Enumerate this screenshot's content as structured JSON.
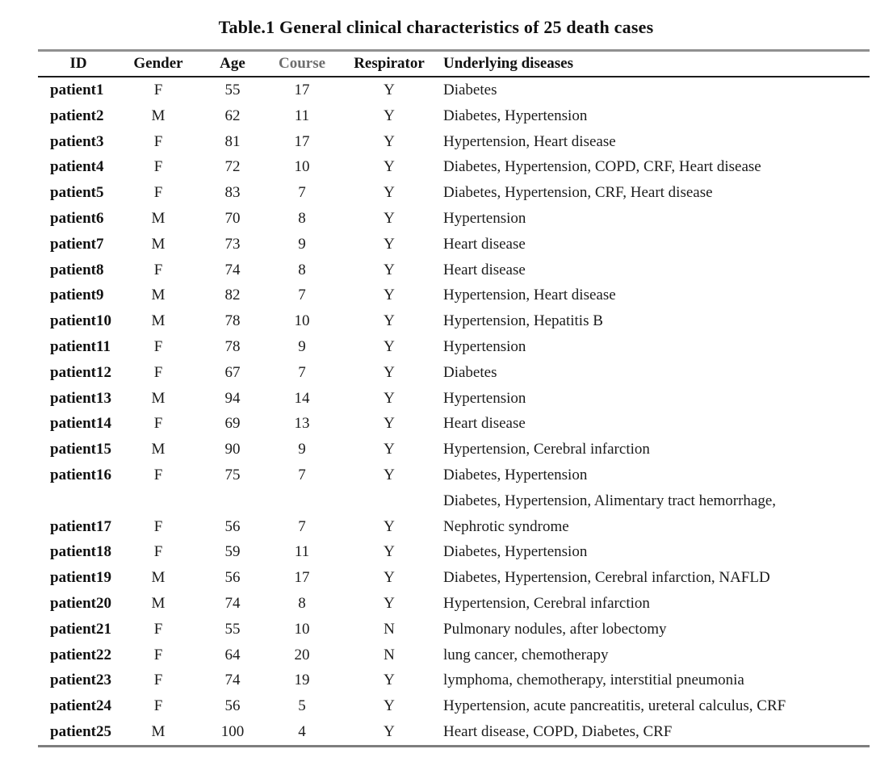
{
  "title": "Table.1 General clinical characteristics of 25 death cases",
  "colors": {
    "background": "#ffffff",
    "text": "#1b1b1b",
    "top_rule": "#909090",
    "bottom_rule": "#7e7e7e",
    "header_rule": "#1c1c1c",
    "course_header_text": "#6e6e6e"
  },
  "table": {
    "columns": [
      "ID",
      "Gender",
      "Age",
      "Course",
      "Respirator",
      "Underlying diseases"
    ],
    "rows": [
      {
        "id": "patient1",
        "gender": "F",
        "age": "55",
        "course": "17",
        "respirator": "Y",
        "diseases": "Diabetes"
      },
      {
        "id": "patient2",
        "gender": "M",
        "age": "62",
        "course": "11",
        "respirator": "Y",
        "diseases": "Diabetes, Hypertension"
      },
      {
        "id": "patient3",
        "gender": "F",
        "age": "81",
        "course": "17",
        "respirator": "Y",
        "diseases": "Hypertension, Heart disease"
      },
      {
        "id": "patient4",
        "gender": "F",
        "age": "72",
        "course": "10",
        "respirator": "Y",
        "diseases": "Diabetes, Hypertension, COPD, CRF, Heart disease"
      },
      {
        "id": "patient5",
        "gender": "F",
        "age": "83",
        "course": "7",
        "respirator": "Y",
        "diseases": "Diabetes, Hypertension, CRF, Heart disease"
      },
      {
        "id": "patient6",
        "gender": "M",
        "age": "70",
        "course": "8",
        "respirator": "Y",
        "diseases": "Hypertension"
      },
      {
        "id": "patient7",
        "gender": "M",
        "age": "73",
        "course": "9",
        "respirator": "Y",
        "diseases": "Heart disease"
      },
      {
        "id": "patient8",
        "gender": "F",
        "age": "74",
        "course": "8",
        "respirator": "Y",
        "diseases": "Heart disease"
      },
      {
        "id": "patient9",
        "gender": "M",
        "age": "82",
        "course": "7",
        "respirator": "Y",
        "diseases": "Hypertension, Heart disease"
      },
      {
        "id": "patient10",
        "gender": "M",
        "age": "78",
        "course": "10",
        "respirator": "Y",
        "diseases": "Hypertension, Hepatitis B"
      },
      {
        "id": "patient11",
        "gender": "F",
        "age": "78",
        "course": "9",
        "respirator": "Y",
        "diseases": "Hypertension"
      },
      {
        "id": "patient12",
        "gender": "F",
        "age": "67",
        "course": "7",
        "respirator": "Y",
        "diseases": "Diabetes"
      },
      {
        "id": "patient13",
        "gender": "M",
        "age": "94",
        "course": "14",
        "respirator": "Y",
        "diseases": "Hypertension"
      },
      {
        "id": "patient14",
        "gender": "F",
        "age": "69",
        "course": "13",
        "respirator": "Y",
        "diseases": "Heart disease"
      },
      {
        "id": "patient15",
        "gender": "M",
        "age": "90",
        "course": "9",
        "respirator": "Y",
        "diseases": "Hypertension, Cerebral infarction"
      },
      {
        "id": "patient16",
        "gender": "F",
        "age": "75",
        "course": "7",
        "respirator": "Y",
        "diseases": "Diabetes, Hypertension"
      },
      {
        "id": "patient17",
        "gender": "F",
        "age": "56",
        "course": "7",
        "respirator": "Y",
        "diseases": [
          "Diabetes, Hypertension, Alimentary tract hemorrhage,",
          "Nephrotic syndrome"
        ]
      },
      {
        "id": "patient18",
        "gender": "F",
        "age": "59",
        "course": "11",
        "respirator": "Y",
        "diseases": "Diabetes, Hypertension"
      },
      {
        "id": "patient19",
        "gender": "M",
        "age": "56",
        "course": "17",
        "respirator": "Y",
        "diseases": "Diabetes, Hypertension, Cerebral infarction, NAFLD"
      },
      {
        "id": "patient20",
        "gender": "M",
        "age": "74",
        "course": "8",
        "respirator": "Y",
        "diseases": "Hypertension, Cerebral infarction"
      },
      {
        "id": "patient21",
        "gender": "F",
        "age": "55",
        "course": "10",
        "respirator": "N",
        "diseases": "Pulmonary nodules, after lobectomy"
      },
      {
        "id": "patient22",
        "gender": "F",
        "age": "64",
        "course": "20",
        "respirator": "N",
        "diseases": "lung cancer, chemotherapy"
      },
      {
        "id": "patient23",
        "gender": "F",
        "age": "74",
        "course": "19",
        "respirator": "Y",
        "diseases": "lymphoma, chemotherapy, interstitial pneumonia"
      },
      {
        "id": "patient24",
        "gender": "F",
        "age": "56",
        "course": "5",
        "respirator": "Y",
        "diseases": "Hypertension, acute pancreatitis, ureteral calculus, CRF"
      },
      {
        "id": "patient25",
        "gender": "M",
        "age": "100",
        "course": "4",
        "respirator": "Y",
        "diseases": "Heart disease, COPD, Diabetes, CRF"
      }
    ]
  }
}
